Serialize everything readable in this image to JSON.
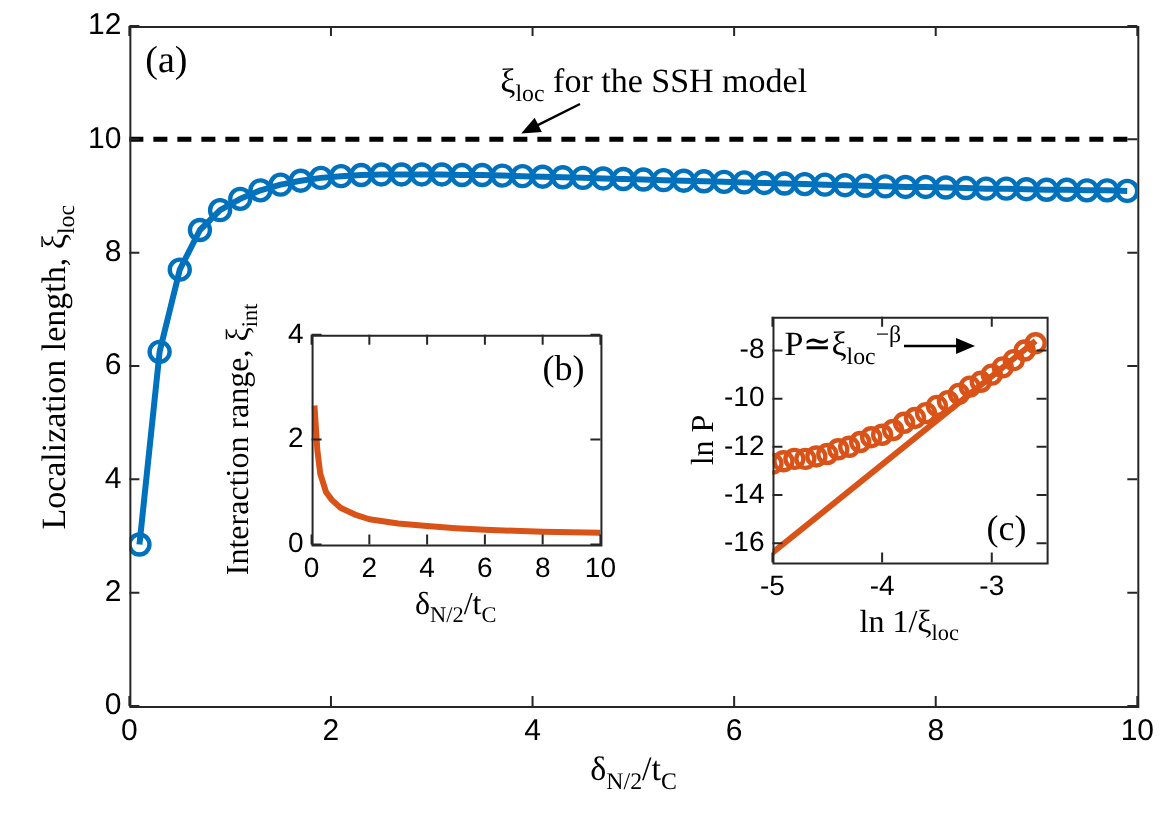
{
  "chart_data": [
    {
      "type": "line",
      "xlabel": "δ$_{N/2}$/t$_{C}$",
      "ylabel": "Localization length, ξ$_{loc}$",
      "xlim": [
        0,
        10
      ],
      "ylim": [
        0,
        12
      ],
      "xticks": [
        0,
        2,
        4,
        6,
        8,
        10
      ],
      "yticks": [
        0,
        2,
        4,
        6,
        8,
        10,
        12
      ],
      "grid": false,
      "annotations": [
        "(a)"
      ],
      "ref_lines": [
        {
          "axis": "y",
          "value": 10,
          "label": "ξ$_{loc}$ for the SSH model",
          "color": "#000000",
          "line_style": "dashed"
        }
      ],
      "series": [
        {
          "color": "#0072bd",
          "x": [
            0.1,
            0.3,
            0.5,
            0.7,
            0.9,
            1.1,
            1.3,
            1.5,
            1.7,
            1.9,
            2.1,
            2.3,
            2.5,
            2.7,
            2.9,
            3.1,
            3.3,
            3.5,
            3.7,
            3.9,
            4.1,
            4.3,
            4.5,
            4.7,
            4.9,
            5.1,
            5.3,
            5.5,
            5.7,
            5.9,
            6.1,
            6.3,
            6.5,
            6.7,
            6.9,
            7.1,
            7.3,
            7.5,
            7.7,
            7.9,
            8.1,
            8.3,
            8.5,
            8.7,
            8.9,
            9.1,
            9.3,
            9.5,
            9.7,
            9.9
          ],
          "values": [
            2.85,
            6.25,
            7.7,
            8.4,
            8.75,
            8.95,
            9.1,
            9.2,
            9.27,
            9.32,
            9.35,
            9.37,
            9.38,
            9.38,
            9.38,
            9.38,
            9.37,
            9.37,
            9.36,
            9.35,
            9.34,
            9.33,
            9.32,
            9.31,
            9.3,
            9.29,
            9.28,
            9.27,
            9.26,
            9.25,
            9.24,
            9.23,
            9.22,
            9.21,
            9.2,
            9.19,
            9.18,
            9.17,
            9.16,
            9.16,
            9.15,
            9.14,
            9.13,
            9.13,
            9.12,
            9.11,
            9.11,
            9.1,
            9.1,
            9.09
          ]
        },
        {
          "type": "scatter",
          "color": "#0072bd",
          "marker": "circle",
          "x": [
            0.1,
            0.3,
            0.5,
            0.7,
            0.9,
            1.1,
            1.3,
            1.5,
            1.7,
            1.9,
            2.1,
            2.3,
            2.5,
            2.7,
            2.9,
            3.1,
            3.3,
            3.5,
            3.7,
            3.9,
            4.1,
            4.3,
            4.5,
            4.7,
            4.9,
            5.1,
            5.3,
            5.5,
            5.7,
            5.9,
            6.1,
            6.3,
            6.5,
            6.7,
            6.9,
            7.1,
            7.3,
            7.5,
            7.7,
            7.9,
            8.1,
            8.3,
            8.5,
            8.7,
            8.9,
            9.1,
            9.3,
            9.5,
            9.7,
            9.9
          ],
          "values": [
            2.85,
            6.25,
            7.7,
            8.4,
            8.75,
            8.95,
            9.1,
            9.2,
            9.27,
            9.32,
            9.35,
            9.37,
            9.38,
            9.38,
            9.38,
            9.38,
            9.37,
            9.37,
            9.36,
            9.35,
            9.34,
            9.33,
            9.32,
            9.31,
            9.3,
            9.29,
            9.28,
            9.27,
            9.26,
            9.25,
            9.24,
            9.23,
            9.22,
            9.21,
            9.2,
            9.19,
            9.18,
            9.17,
            9.16,
            9.16,
            9.15,
            9.14,
            9.13,
            9.13,
            9.12,
            9.11,
            9.11,
            9.1,
            9.1,
            9.09
          ]
        }
      ]
    },
    {
      "type": "line",
      "xlabel": "δ$_{N/2}$/t$_{C}$",
      "ylabel": "Interaction range, ξ$_{int}$",
      "xlim": [
        0,
        10
      ],
      "ylim": [
        0,
        4
      ],
      "xticks": [
        0,
        2,
        4,
        6,
        8,
        10
      ],
      "yticks": [
        0,
        2,
        4
      ],
      "grid": false,
      "annotations": [
        "(b)"
      ],
      "series": [
        {
          "color": "#d95319",
          "x": [
            0.1,
            0.2,
            0.3,
            0.5,
            0.7,
            1,
            1.5,
            2,
            3,
            4,
            5,
            6,
            7,
            8,
            9,
            10
          ],
          "values": [
            2.65,
            1.8,
            1.35,
            1.0,
            0.85,
            0.7,
            0.57,
            0.48,
            0.4,
            0.35,
            0.31,
            0.28,
            0.26,
            0.24,
            0.23,
            0.22
          ]
        }
      ]
    },
    {
      "type": "scatter",
      "xlabel": "ln 1/ξ$_{loc}$",
      "ylabel": "ln P",
      "xlim": [
        -5,
        -2.5
      ],
      "ylim": [
        -16.8,
        -6.6
      ],
      "xticks": [
        -5,
        -4,
        -3
      ],
      "yticks": [
        -16,
        -14,
        -12,
        -10,
        -8
      ],
      "grid": false,
      "annotations": [
        "(c)",
        "P≃ξ$_{loc}$$^{−β}$"
      ],
      "series": [
        {
          "color": "#d95319",
          "marker": "circle",
          "x": [
            -5,
            -4.9,
            -4.8,
            -4.7,
            -4.6,
            -4.5,
            -4.4,
            -4.3,
            -4.2,
            -4.1,
            -4,
            -3.9,
            -3.8,
            -3.7,
            -3.6,
            -3.5,
            -3.4,
            -3.3,
            -3.2,
            -3.1,
            -3,
            -2.9,
            -2.8,
            -2.7,
            -2.6
          ],
          "values": [
            -12.7,
            -12.6,
            -12.5,
            -12.5,
            -12.4,
            -12.3,
            -12.1,
            -12,
            -11.8,
            -11.6,
            -11.5,
            -11.3,
            -11,
            -10.8,
            -10.6,
            -10.3,
            -10.1,
            -9.8,
            -9.5,
            -9.3,
            -9,
            -8.7,
            -8.4,
            -8,
            -7.7
          ]
        },
        {
          "type": "line",
          "color": "#d95319",
          "x": [
            -5,
            -2.6
          ],
          "values": [
            -16.4,
            -7.6
          ]
        }
      ]
    }
  ]
}
